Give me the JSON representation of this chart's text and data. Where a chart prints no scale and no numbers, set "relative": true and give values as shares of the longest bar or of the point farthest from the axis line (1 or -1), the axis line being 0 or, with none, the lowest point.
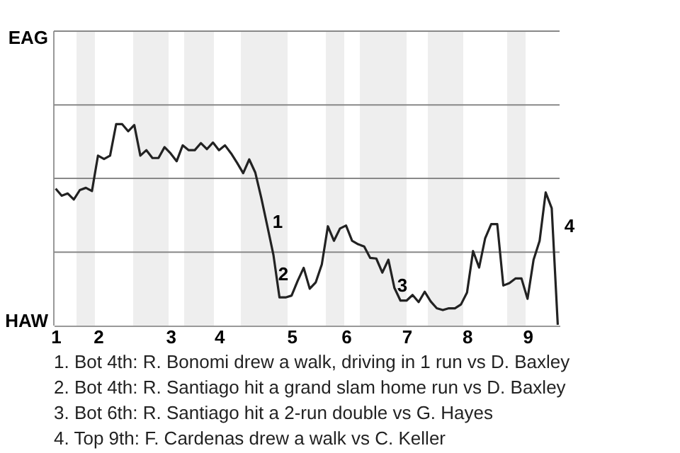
{
  "chart_data": {
    "type": "line",
    "color": "#222222",
    "line_style": "solid",
    "relative": true,
    "categories": [
      "1",
      null,
      null,
      null,
      null,
      null,
      null,
      "2",
      null,
      null,
      null,
      null,
      null,
      null,
      null,
      null,
      null,
      null,
      null,
      "3",
      null,
      null,
      null,
      null,
      null,
      null,
      null,
      "4",
      null,
      null,
      null,
      null,
      null,
      null,
      null,
      null,
      null,
      null,
      null,
      "5",
      null,
      null,
      null,
      null,
      null,
      null,
      null,
      null,
      "6",
      null,
      null,
      null,
      null,
      null,
      null,
      null,
      null,
      null,
      "7",
      null,
      null,
      null,
      null,
      null,
      null,
      null,
      null,
      null,
      "8",
      null,
      null,
      null,
      null,
      null,
      null,
      null,
      null,
      null,
      "9",
      null,
      null,
      null,
      null,
      null
    ],
    "values": [
      0.68,
      0.645,
      0.656,
      0.626,
      0.673,
      0.684,
      0.668,
      0.844,
      0.827,
      0.844,
      1,
      1,
      0.965,
      0.996,
      0.844,
      0.871,
      0.832,
      0.832,
      0.886,
      0.855,
      0.816,
      0.895,
      0.871,
      0.871,
      0.906,
      0.876,
      0.909,
      0.871,
      0.895,
      0.855,
      0.808,
      0.757,
      0.825,
      0.76,
      0.633,
      0.493,
      0.351,
      0.14,
      0.14,
      0.149,
      0.222,
      0.287,
      0.183,
      0.215,
      0.304,
      0.493,
      0.421,
      0.482,
      0.497,
      0.421,
      0.404,
      0.393,
      0.336,
      0.333,
      0.263,
      0.327,
      0.187,
      0.124,
      0.124,
      0.152,
      0.117,
      0.168,
      0.12,
      0.086,
      0.077,
      0.086,
      0.086,
      0.105,
      0.164,
      0.37,
      0.288,
      0.434,
      0.504,
      0.504,
      0.199,
      0.211,
      0.234,
      0.234,
      0.133,
      0.327,
      0.421,
      0.661,
      0.583,
      0.004
    ],
    "ref_lines": [
      {
        "axis": "y",
        "value": 0.365,
        "color": "#888888"
      },
      {
        "axis": "y",
        "value": 0.731,
        "color": "#888888"
      },
      {
        "axis": "y",
        "value": 1.096,
        "color": "#888888"
      },
      {
        "axis": "y",
        "value": 1.462,
        "color": "#888888"
      }
    ],
    "annotations": [
      "EAG",
      "HAW",
      "1",
      "2",
      "3",
      "4",
      "1. Bot 4th: R. Bonomi drew a walk, driving in 1 run vs D. Baxley",
      "2. Bot 4th: R. Santiago hit a grand slam home run vs D. Baxley",
      "3. Bot 6th: R. Santiago hit a 2-run double vs G. Hayes",
      "4. Top 9th: F. Cardenas drew a walk vs C. Keller"
    ]
  }
}
